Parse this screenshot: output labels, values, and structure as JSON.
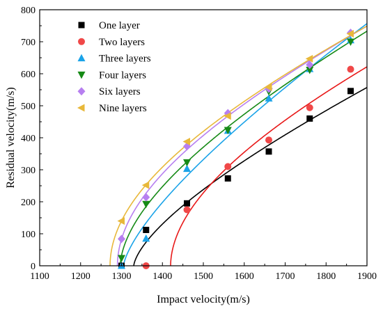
{
  "chart_data": {
    "type": "scatter",
    "xlabel": "Impact velocity(m/s)",
    "ylabel": "Residual velocity(m/s)",
    "xlim": [
      1100,
      1900
    ],
    "ylim": [
      0,
      800
    ],
    "xticks": [
      1100,
      1200,
      1300,
      1400,
      1500,
      1600,
      1700,
      1800,
      1900
    ],
    "yticks": [
      0,
      100,
      200,
      300,
      400,
      500,
      600,
      700,
      800
    ],
    "legend_position": "top-left",
    "grid": false,
    "series": [
      {
        "name": "One layer",
        "marker": "square",
        "color": "#000000",
        "fit_color": "#000000",
        "ballistic_limit": 1330,
        "points": [
          [
            1300,
            0
          ],
          [
            1360,
            112
          ],
          [
            1460,
            195
          ],
          [
            1560,
            273
          ],
          [
            1660,
            357
          ],
          [
            1760,
            460
          ],
          [
            1860,
            546
          ]
        ]
      },
      {
        "name": "Two layers",
        "marker": "circle",
        "color": "#f04848",
        "fit_color": "#e81818",
        "ballistic_limit": 1420,
        "points": [
          [
            1360,
            0
          ],
          [
            1460,
            175
          ],
          [
            1560,
            310
          ],
          [
            1660,
            393
          ],
          [
            1760,
            494
          ],
          [
            1860,
            614
          ]
        ]
      },
      {
        "name": "Three layers",
        "marker": "triangle-up",
        "color": "#1aa3e8",
        "fit_color": "#1aa3e8",
        "ballistic_limit": 1305,
        "points": [
          [
            1300,
            0
          ],
          [
            1360,
            85
          ],
          [
            1460,
            303
          ],
          [
            1560,
            422
          ],
          [
            1660,
            523
          ],
          [
            1760,
            615
          ],
          [
            1860,
            705
          ]
        ]
      },
      {
        "name": "Four layers",
        "marker": "triangle-down",
        "color": "#168a16",
        "fit_color": "#168a16",
        "ballistic_limit": 1297,
        "points": [
          [
            1300,
            24
          ],
          [
            1360,
            193
          ],
          [
            1460,
            323
          ],
          [
            1560,
            424
          ],
          [
            1660,
            545
          ],
          [
            1760,
            612
          ],
          [
            1860,
            700
          ]
        ]
      },
      {
        "name": "Six layers",
        "marker": "diamond",
        "color": "#b77ff0",
        "fit_color": "#b77ff0",
        "ballistic_limit": 1290,
        "points": [
          [
            1300,
            84
          ],
          [
            1360,
            214
          ],
          [
            1460,
            373
          ],
          [
            1560,
            477
          ],
          [
            1660,
            553
          ],
          [
            1760,
            628
          ],
          [
            1860,
            728
          ]
        ]
      },
      {
        "name": "Nine layers",
        "marker": "triangle-left",
        "color": "#e8b83a",
        "fit_color": "#e8b83a",
        "ballistic_limit": 1272,
        "points": [
          [
            1300,
            140
          ],
          [
            1360,
            252
          ],
          [
            1460,
            388
          ],
          [
            1560,
            468
          ],
          [
            1660,
            558
          ],
          [
            1760,
            647
          ],
          [
            1860,
            725
          ]
        ]
      }
    ]
  }
}
